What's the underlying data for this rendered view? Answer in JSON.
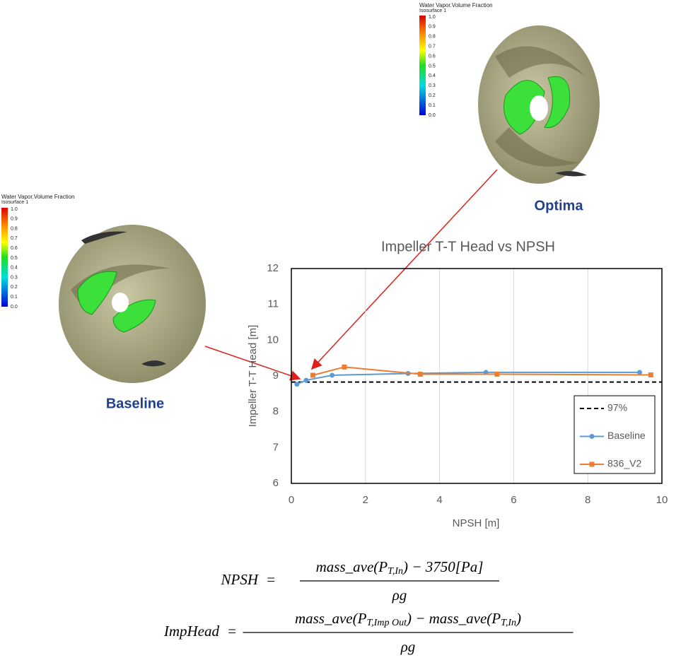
{
  "chart_data": {
    "type": "line",
    "title": "Impeller T-T Head vs NPSH",
    "x_label": "NPSH [m]",
    "y_label": "Impeller T-T Head [m]",
    "xlim": [
      0,
      10
    ],
    "ylim": [
      6,
      12
    ],
    "xticks": [
      0,
      2,
      4,
      6,
      8,
      10
    ],
    "yticks": [
      6,
      7,
      8,
      9,
      10,
      11,
      12
    ],
    "grid": "x",
    "legend": "lower right",
    "series": [
      {
        "name": "97%",
        "color": "#000000",
        "style": "dashed",
        "marker": null,
        "x": [
          0,
          10
        ],
        "values": [
          8.83,
          8.83
        ]
      },
      {
        "name": "Baseline",
        "color": "#5b9bd5",
        "style": "solid",
        "marker": "circle",
        "x": [
          0.15,
          0.4,
          1.1,
          3.15,
          5.25,
          9.4
        ],
        "values": [
          8.77,
          8.88,
          9.02,
          9.07,
          9.1,
          9.1
        ]
      },
      {
        "name": "836_V2",
        "color": "#ed7d31",
        "style": "solid",
        "marker": "square",
        "x": [
          0.58,
          1.43,
          3.48,
          5.55,
          9.7
        ],
        "values": [
          9.02,
          9.25,
          9.05,
          9.05,
          9.03
        ]
      }
    ]
  },
  "images": [
    {
      "label": "Optima",
      "colorbar": {
        "title": "Water Vapor.Volume Fraction",
        "subtitle": "Isosurface 1",
        "ticks": [
          "1.0",
          "0.9",
          "0.8",
          "0.7",
          "0.6",
          "0.5",
          "0.4",
          "0.3",
          "0.2",
          "0.1",
          "0.0"
        ]
      }
    },
    {
      "label": "Baseline",
      "colorbar": {
        "title": "Water Vapor.Volume Fraction",
        "subtitle": "Isosurface 1",
        "ticks": [
          "1.0",
          "0.9",
          "0.8",
          "0.7",
          "0.6",
          "0.5",
          "0.4",
          "0.3",
          "0.2",
          "0.1",
          "0.0"
        ]
      }
    }
  ],
  "formulas": [
    {
      "lhs": "NPSH",
      "numerator": [
        "mass_ave(P",
        "T,In",
        ") − 3750[Pa]"
      ],
      "denominator": "ρg"
    },
    {
      "lhs": "ImpHead",
      "numerator": [
        "mass_ave(P",
        "T,Imp Out",
        ") − mass_ave(P",
        "T,In",
        ")"
      ],
      "denominator": "ρg"
    }
  ]
}
